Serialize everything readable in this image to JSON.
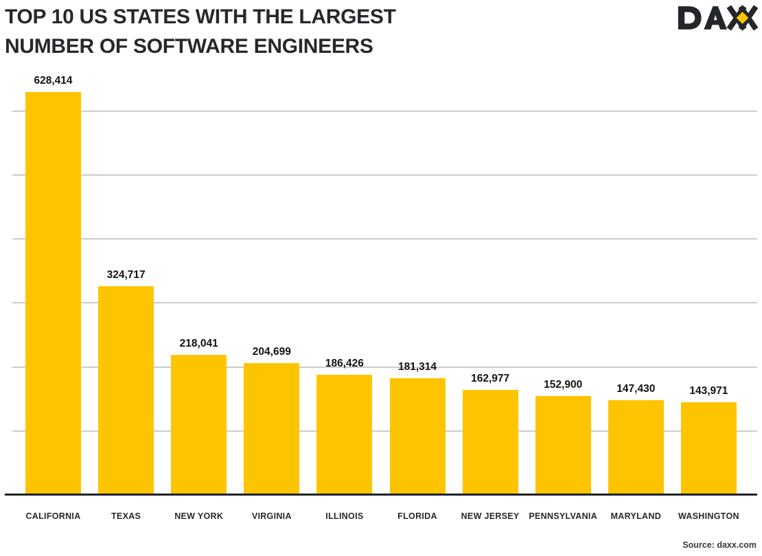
{
  "header": {
    "title_line1": "TOP 10 US STATES WITH THE LARGEST",
    "title_line2": "NUMBER OF SOFTWARE ENGINEERS",
    "logo_text": "DAXX"
  },
  "footer": {
    "source": "Source: daxx.com"
  },
  "colors": {
    "bar": "#FFC400",
    "title_text": "#26282B",
    "gridline": "#CCCCCC",
    "axis": "#1F2124",
    "logo_dark": "#23262A",
    "logo_diamond": "#FFC400"
  },
  "chart_data": {
    "type": "bar",
    "title": "TOP 10 US STATES WITH THE LARGEST NUMBER OF SOFTWARE ENGINEERS",
    "categories": [
      "CALIFORNIA",
      "TEXAS",
      "NEW YORK",
      "VIRGINIA",
      "ILLINOIS",
      "FLORIDA",
      "NEW JERSEY",
      "PENNSYLVANIA",
      "MARYLAND",
      "WASHINGTON"
    ],
    "values": [
      628414,
      324717,
      218041,
      204699,
      186426,
      181314,
      162977,
      152900,
      147430,
      143971
    ],
    "value_labels": [
      "628,414",
      "324,717",
      "218,041",
      "204,699",
      "186,426",
      "181,314",
      "162,977",
      "152,900",
      "147,430",
      "143,971"
    ],
    "xlabel": "",
    "ylabel": "",
    "ylim": [
      0,
      650000
    ],
    "gridline_values": [
      100000,
      200000,
      300000,
      400000,
      500000,
      600000
    ],
    "grid": true,
    "legend": false,
    "bar_color": "#FFC400",
    "source": "Source: daxx.com"
  }
}
